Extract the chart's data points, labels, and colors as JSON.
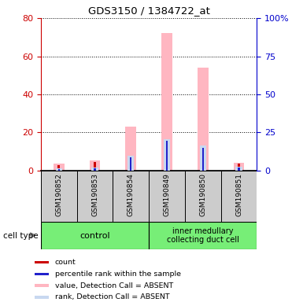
{
  "title": "GDS3150 / 1384722_at",
  "samples": [
    "GSM190852",
    "GSM190853",
    "GSM190854",
    "GSM190849",
    "GSM190850",
    "GSM190851"
  ],
  "left_axis_color": "#cc0000",
  "right_axis_color": "#0000cc",
  "ylim_left": [
    0,
    80
  ],
  "ylim_right": [
    0,
    100
  ],
  "yticks_left": [
    0,
    20,
    40,
    60,
    80
  ],
  "yticks_right": [
    0,
    25,
    50,
    75,
    100
  ],
  "yticklabels_right": [
    "0",
    "25",
    "50",
    "75",
    "100%"
  ],
  "value_absent": [
    3.5,
    5.5,
    23.0,
    72.0,
    54.0,
    4.0
  ],
  "rank_absent": [
    1.5,
    2.0,
    10.0,
    20.5,
    16.5,
    2.5
  ],
  "count": [
    3.0,
    4.5,
    3.0,
    2.5,
    2.5,
    3.5
  ],
  "percentile": [
    1.2,
    1.5,
    9.0,
    19.5,
    15.0,
    2.0
  ],
  "bar_color_value": "#ffb6c1",
  "bar_color_rank": "#c8d8f0",
  "bar_color_count": "#cc0000",
  "bar_color_percentile": "#2222cc",
  "sample_box_color": "#cccccc",
  "group_colors": [
    "#77ee77",
    "#77ee77"
  ],
  "legend_items": [
    {
      "color": "#cc0000",
      "label": "count"
    },
    {
      "color": "#2222cc",
      "label": "percentile rank within the sample"
    },
    {
      "color": "#ffb6c1",
      "label": "value, Detection Call = ABSENT"
    },
    {
      "color": "#c8d8f0",
      "label": "rank, Detection Call = ABSENT"
    }
  ],
  "figsize": [
    3.71,
    3.84
  ],
  "dpi": 100
}
